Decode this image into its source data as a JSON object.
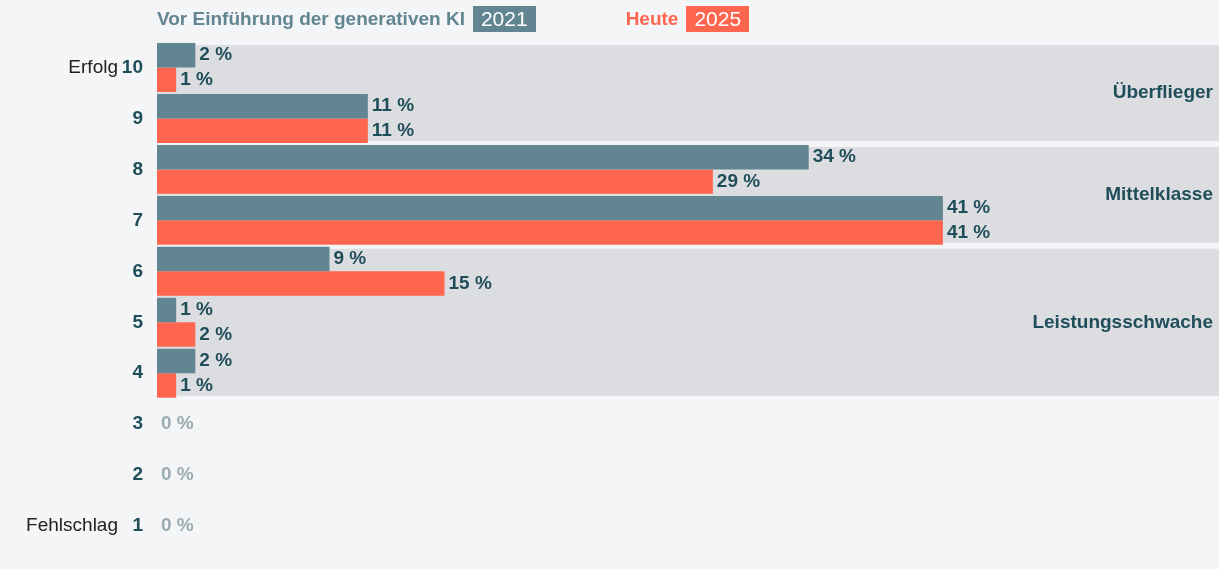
{
  "chart_data": {
    "type": "bar",
    "orientation": "horizontal",
    "categories": [
      "10",
      "9",
      "8",
      "7",
      "6",
      "5",
      "4",
      "3",
      "2",
      "1"
    ],
    "series": [
      {
        "name": "Vor Einführung der generativen KI 2021",
        "color": "#628592",
        "values": [
          2,
          11,
          34,
          41,
          9,
          1,
          2,
          0,
          0,
          0
        ],
        "value_labels": [
          "2 %",
          "11 %",
          "34 %",
          "41 %",
          "9 %",
          "1 %",
          "2 %",
          "0 %",
          "0 %",
          "0 %"
        ]
      },
      {
        "name": "Heute 2025",
        "color": "#ff6650",
        "values": [
          1,
          11,
          29,
          41,
          15,
          2,
          1,
          0,
          0,
          0
        ],
        "value_labels": [
          "1 %",
          "11 %",
          "29 %",
          "41 %",
          "15 %",
          "2 %",
          "1 %",
          null,
          null,
          null
        ]
      }
    ],
    "tick_labels": "y",
    "grid": false,
    "legend": "top",
    "bands": [
      {
        "axis": "y",
        "from": "10",
        "to": "9",
        "label": "Überflieger",
        "color": "#dcdde0"
      },
      {
        "axis": "y",
        "from": "8",
        "to": "7",
        "label": "Mittelklasse",
        "color": "#dcdde0"
      },
      {
        "axis": "y",
        "from": "6",
        "to": "4",
        "label": "Leistungsschwache",
        "color": "#dcdde0"
      }
    ],
    "annotations": [
      "Erfolg",
      "Fehlschlag"
    ]
  }
}
